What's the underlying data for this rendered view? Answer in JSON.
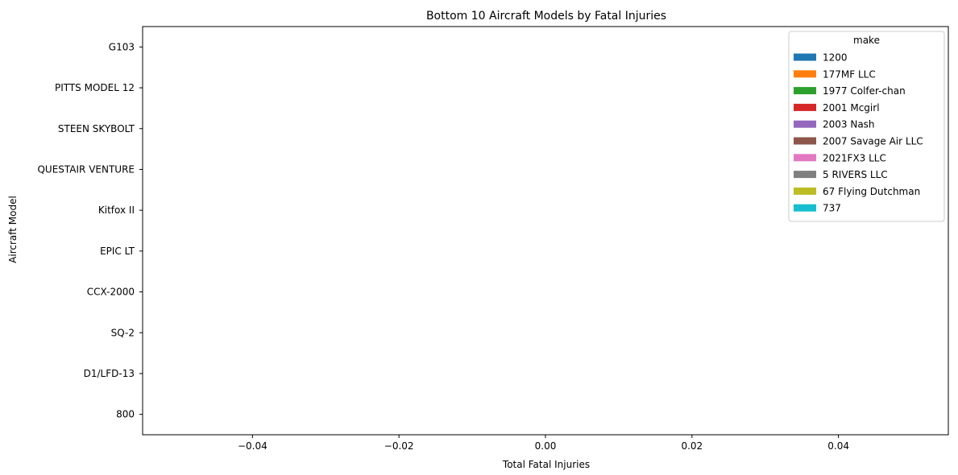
{
  "chart_data": {
    "type": "bar",
    "orientation": "horizontal",
    "title": "Bottom 10 Aircraft Models by Fatal Injuries",
    "xlabel": "Total Fatal Injuries",
    "ylabel": "Aircraft Model",
    "categories": [
      "G103",
      "PITTS MODEL 12",
      "STEEN SKYBOLT",
      "QUESTAIR VENTURE",
      "Kitfox II",
      "EPIC LT",
      "CCX-2000",
      "SQ-2",
      "D1/LFD-13",
      "800"
    ],
    "xlim": [
      -0.055,
      0.055
    ],
    "x_ticks": [
      -0.04,
      -0.02,
      0.0,
      0.02,
      0.04
    ],
    "x_tick_labels": [
      "−0.04",
      "−0.02",
      "0.00",
      "0.02",
      "0.04"
    ],
    "grid": false,
    "legend": {
      "title": "make",
      "placement": "top-right",
      "entries": [
        {
          "name": "1200",
          "color": "#1f77b4"
        },
        {
          "name": "177MF LLC",
          "color": "#ff7f0e"
        },
        {
          "name": "1977 Colfer-chan",
          "color": "#2ca02c"
        },
        {
          "name": "2001 Mcgirl",
          "color": "#d62728"
        },
        {
          "name": "2003 Nash",
          "color": "#9467bd"
        },
        {
          "name": "2007 Savage Air LLC",
          "color": "#8c564b"
        },
        {
          "name": "2021FX3 LLC",
          "color": "#e377c2"
        },
        {
          "name": "5 RIVERS LLC",
          "color": "#7f7f7f"
        },
        {
          "name": "67 Flying Dutchman",
          "color": "#bcbd22"
        },
        {
          "name": "737",
          "color": "#17becf"
        }
      ]
    },
    "series": [
      {
        "name": "1200",
        "values": [
          null,
          null,
          null,
          null,
          null,
          null,
          null,
          null,
          null,
          0
        ]
      },
      {
        "name": "177MF LLC",
        "values": [
          null,
          null,
          null,
          null,
          null,
          null,
          null,
          null,
          null,
          null
        ]
      },
      {
        "name": "1977 Colfer-chan",
        "values": [
          null,
          null,
          null,
          null,
          null,
          null,
          null,
          null,
          null,
          null
        ]
      },
      {
        "name": "2001 Mcgirl",
        "values": [
          null,
          null,
          null,
          null,
          null,
          null,
          null,
          null,
          null,
          null
        ]
      },
      {
        "name": "2003 Nash",
        "values": [
          null,
          null,
          null,
          null,
          null,
          null,
          null,
          null,
          null,
          null
        ]
      },
      {
        "name": "2007 Savage Air LLC",
        "values": [
          null,
          null,
          null,
          null,
          null,
          null,
          null,
          null,
          null,
          null
        ]
      },
      {
        "name": "2021FX3 LLC",
        "values": [
          null,
          null,
          null,
          null,
          null,
          null,
          null,
          null,
          null,
          null
        ]
      },
      {
        "name": "5 RIVERS LLC",
        "values": [
          null,
          null,
          null,
          null,
          null,
          null,
          null,
          null,
          null,
          null
        ]
      },
      {
        "name": "67 Flying Dutchman",
        "values": [
          null,
          null,
          null,
          null,
          null,
          null,
          null,
          null,
          null,
          null
        ]
      },
      {
        "name": "737",
        "values": [
          null,
          null,
          null,
          null,
          null,
          null,
          null,
          null,
          null,
          null
        ]
      }
    ]
  }
}
